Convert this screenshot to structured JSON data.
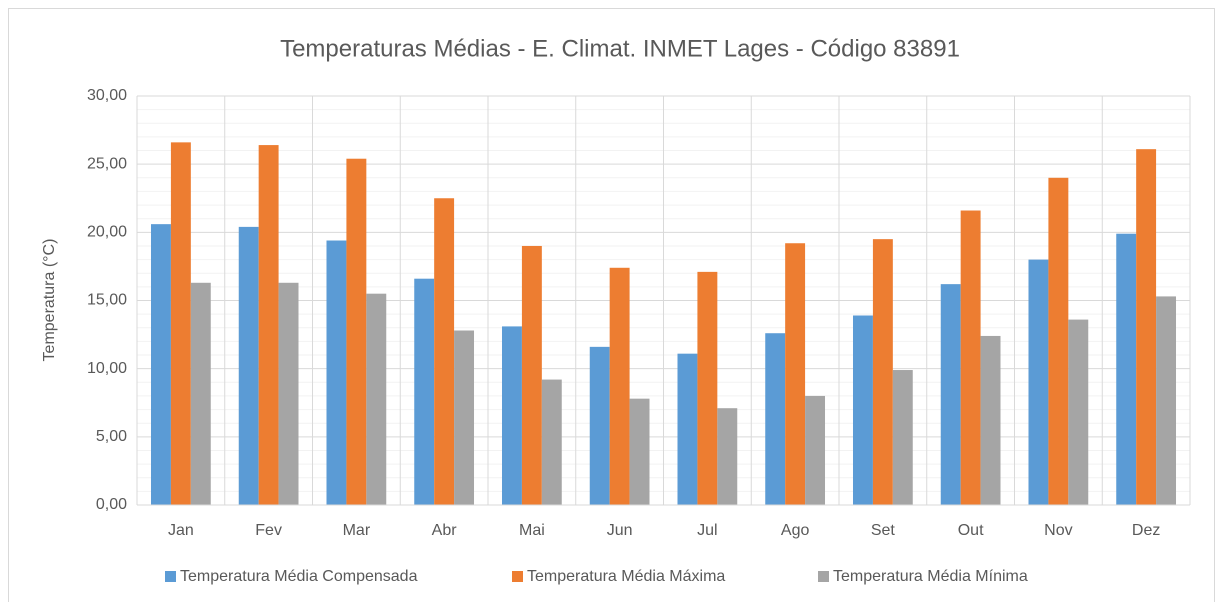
{
  "chart_data": {
    "type": "bar",
    "title": "Temperaturas Médias - E. Climat. INMET Lages - Código 83891",
    "y_label": "Temperatura (°C)",
    "categories": [
      "Jan",
      "Fev",
      "Mar",
      "Abr",
      "Mai",
      "Jun",
      "Jul",
      "Ago",
      "Set",
      "Out",
      "Nov",
      "Dez"
    ],
    "series": [
      {
        "name": "Temperatura Média Compensada",
        "color": "#5b9bd5",
        "values": [
          20.6,
          20.4,
          19.4,
          16.6,
          13.1,
          11.6,
          11.1,
          12.6,
          13.9,
          16.2,
          18.0,
          19.9
        ]
      },
      {
        "name": "Temperatura Média Máxima",
        "color": "#ed7d31",
        "values": [
          26.6,
          26.4,
          25.4,
          22.5,
          19.0,
          17.4,
          17.1,
          19.2,
          19.5,
          21.6,
          24.0,
          26.1
        ]
      },
      {
        "name": "Temperatura Média Mínima",
        "color": "#a5a5a5",
        "values": [
          16.3,
          16.3,
          15.5,
          12.8,
          9.2,
          7.8,
          7.1,
          8.0,
          9.9,
          12.4,
          13.6,
          15.3
        ]
      }
    ],
    "ylim": [
      0,
      30
    ],
    "yticks": [
      {
        "value": 0,
        "label": "0,00"
      },
      {
        "value": 5,
        "label": "5,00"
      },
      {
        "value": 10,
        "label": "10,00"
      },
      {
        "value": 15,
        "label": "15,00"
      },
      {
        "value": 20,
        "label": "20,00"
      },
      {
        "value": 25,
        "label": "25,00"
      },
      {
        "value": 30,
        "label": "30,00"
      }
    ],
    "minor_yticks": [
      1,
      2,
      3,
      4,
      6,
      7,
      8,
      9,
      11,
      12,
      13,
      14,
      16,
      17,
      18,
      19,
      21,
      22,
      23,
      24,
      26,
      27,
      28,
      29
    ],
    "grid": true,
    "legend": "bottom"
  }
}
